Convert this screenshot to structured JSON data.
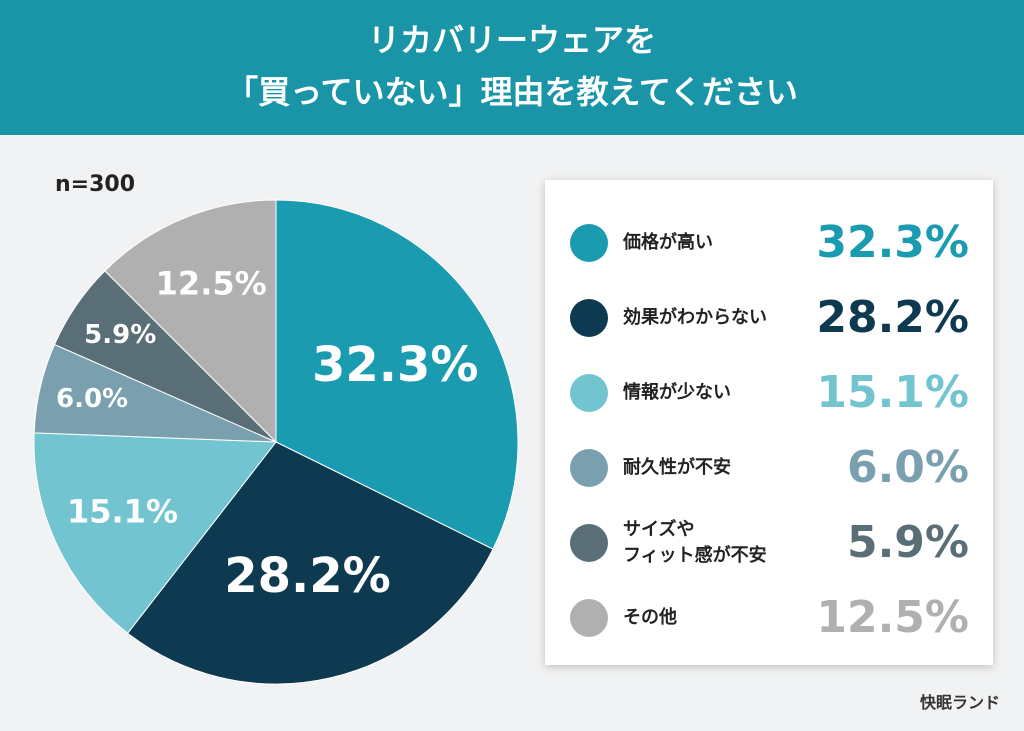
{
  "chart_data": {
    "type": "pie",
    "title": "リカバリーウェアを\n「買っていない」理由を教えてください",
    "subtitle": "n=300",
    "categories": [
      "価格が高い",
      "効果がわからない",
      "情報が少ない",
      "耐久性が不安",
      "サイズや\nフィット感が不安",
      "その他"
    ],
    "values": [
      32.3,
      28.2,
      15.1,
      6.0,
      5.9,
      12.5
    ],
    "value_labels": [
      "32.3%",
      "28.2%",
      "15.1%",
      "6.0%",
      "5.9%",
      "12.5%"
    ],
    "colors": [
      "#1a9bb0",
      "#0d3a50",
      "#72c4d0",
      "#7aa0b0",
      "#5a6e78",
      "#b0b0b0"
    ]
  },
  "brand": "快眠ランド"
}
